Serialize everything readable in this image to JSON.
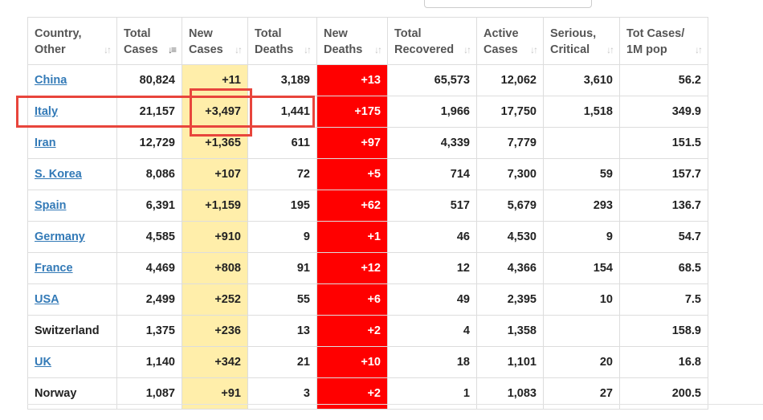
{
  "table": {
    "headers": [
      {
        "key": "country",
        "label": "Country,\nOther",
        "icon": "sort-icon",
        "active": false
      },
      {
        "key": "total_cases",
        "label": "Total\nCases",
        "icon": "sort-desc-icon",
        "active": true
      },
      {
        "key": "new_cases",
        "label": "New\nCases",
        "icon": "sort-icon",
        "active": false
      },
      {
        "key": "total_deaths",
        "label": "Total\nDeaths",
        "icon": "sort-icon",
        "active": false
      },
      {
        "key": "new_deaths",
        "label": "New\nDeaths",
        "icon": "sort-icon",
        "active": false
      },
      {
        "key": "total_recovered",
        "label": "Total\nRecovered",
        "icon": "sort-icon",
        "active": false
      },
      {
        "key": "active_cases",
        "label": "Active\nCases",
        "icon": "sort-icon",
        "active": false
      },
      {
        "key": "serious_critical",
        "label": "Serious,\nCritical",
        "icon": "sort-icon",
        "active": false
      },
      {
        "key": "tot_cases_1m",
        "label": "Tot Cases/\n1M pop",
        "icon": "sort-icon",
        "active": false
      }
    ],
    "rows": [
      {
        "country": "China",
        "link": true,
        "total_cases": "80,824",
        "new_cases": "+11",
        "total_deaths": "3,189",
        "new_deaths": "+13",
        "total_recovered": "65,573",
        "active_cases": "12,062",
        "serious_critical": "3,610",
        "tot_cases_1m": "56.2"
      },
      {
        "country": "Italy",
        "link": true,
        "total_cases": "21,157",
        "new_cases": "+3,497",
        "total_deaths": "1,441",
        "new_deaths": "+175",
        "total_recovered": "1,966",
        "active_cases": "17,750",
        "serious_critical": "1,518",
        "tot_cases_1m": "349.9"
      },
      {
        "country": "Iran",
        "link": true,
        "total_cases": "12,729",
        "new_cases": "+1,365",
        "total_deaths": "611",
        "new_deaths": "+97",
        "total_recovered": "4,339",
        "active_cases": "7,779",
        "serious_critical": "",
        "tot_cases_1m": "151.5"
      },
      {
        "country": "S. Korea",
        "link": true,
        "total_cases": "8,086",
        "new_cases": "+107",
        "total_deaths": "72",
        "new_deaths": "+5",
        "total_recovered": "714",
        "active_cases": "7,300",
        "serious_critical": "59",
        "tot_cases_1m": "157.7"
      },
      {
        "country": "Spain",
        "link": true,
        "total_cases": "6,391",
        "new_cases": "+1,159",
        "total_deaths": "195",
        "new_deaths": "+62",
        "total_recovered": "517",
        "active_cases": "5,679",
        "serious_critical": "293",
        "tot_cases_1m": "136.7"
      },
      {
        "country": "Germany",
        "link": true,
        "total_cases": "4,585",
        "new_cases": "+910",
        "total_deaths": "9",
        "new_deaths": "+1",
        "total_recovered": "46",
        "active_cases": "4,530",
        "serious_critical": "9",
        "tot_cases_1m": "54.7"
      },
      {
        "country": "France",
        "link": true,
        "total_cases": "4,469",
        "new_cases": "+808",
        "total_deaths": "91",
        "new_deaths": "+12",
        "total_recovered": "12",
        "active_cases": "4,366",
        "serious_critical": "154",
        "tot_cases_1m": "68.5"
      },
      {
        "country": "USA",
        "link": true,
        "total_cases": "2,499",
        "new_cases": "+252",
        "total_deaths": "55",
        "new_deaths": "+6",
        "total_recovered": "49",
        "active_cases": "2,395",
        "serious_critical": "10",
        "tot_cases_1m": "7.5"
      },
      {
        "country": "Switzerland",
        "link": false,
        "total_cases": "1,375",
        "new_cases": "+236",
        "total_deaths": "13",
        "new_deaths": "+2",
        "total_recovered": "4",
        "active_cases": "1,358",
        "serious_critical": "",
        "tot_cases_1m": "158.9"
      },
      {
        "country": "UK",
        "link": true,
        "total_cases": "1,140",
        "new_cases": "+342",
        "total_deaths": "21",
        "new_deaths": "+10",
        "total_recovered": "18",
        "active_cases": "1,101",
        "serious_critical": "20",
        "tot_cases_1m": "16.8"
      },
      {
        "country": "Norway",
        "link": false,
        "total_cases": "1,087",
        "new_cases": "+91",
        "total_deaths": "3",
        "new_deaths": "+2",
        "total_recovered": "1",
        "active_cases": "1,083",
        "serious_critical": "27",
        "tot_cases_1m": "200.5"
      }
    ]
  },
  "colors": {
    "new_cases_bg": "#ffeeaa",
    "new_deaths_bg": "#ff0000",
    "link": "#337ab7",
    "highlight": "#e8453c"
  }
}
